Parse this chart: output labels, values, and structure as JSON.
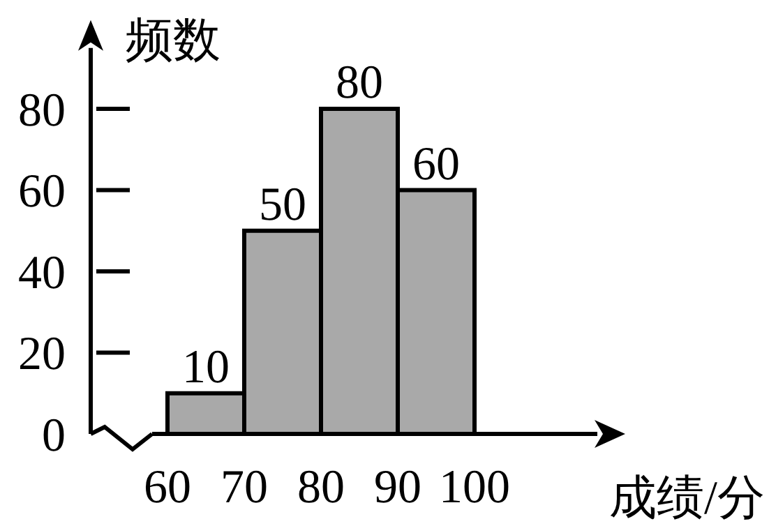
{
  "chart_data": {
    "type": "histogram",
    "xlabel": "成绩/分",
    "ylabel": "频数",
    "bins": [
      60,
      70,
      80,
      90,
      100
    ],
    "values": [
      10,
      50,
      80,
      60
    ],
    "color": "#a9a9a9",
    "xlim": [
      58,
      116
    ],
    "xticks": [
      60,
      70,
      80,
      90,
      100
    ],
    "ylim": [
      0,
      95
    ],
    "yticks": [
      0,
      20,
      40,
      60,
      80
    ],
    "data_labels": true
  }
}
